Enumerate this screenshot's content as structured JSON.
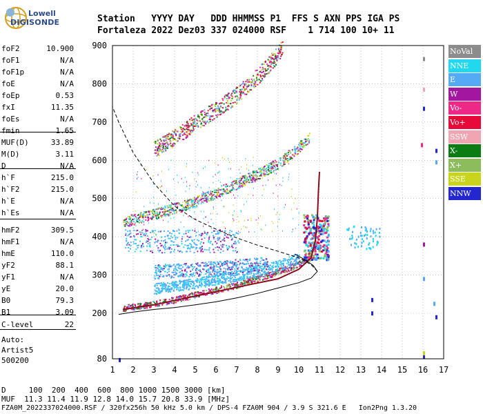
{
  "logo": {
    "line1": "Lowell",
    "line2": "DIGISONDE"
  },
  "header": {
    "line1": "Station   YYYY DAY   DDD HHMMSS P1  FFS S AXN PPS IGA PS",
    "line2": "Fortaleza 2022 Dez03 337 024000 RSF    1 714 100 10+ 11"
  },
  "params": [
    {
      "label": "foF2",
      "value": "10.900"
    },
    {
      "label": "foF1",
      "value": "N/A"
    },
    {
      "label": "foF1p",
      "value": "N/A"
    },
    {
      "label": "foE",
      "value": "N/A"
    },
    {
      "label": "foEp",
      "value": "0.53"
    },
    {
      "label": "fxI",
      "value": "11.35"
    },
    {
      "label": "foEs",
      "value": "N/A"
    },
    {
      "label": "fmin",
      "value": "1.65"
    },
    {
      "label": "MUF(D)",
      "value": "33.89"
    },
    {
      "label": "M(D)",
      "value": "3.11"
    },
    {
      "label": "D",
      "value": "N/A"
    },
    {
      "label": "h`F",
      "value": "215.0"
    },
    {
      "label": "h`F2",
      "value": "215.0"
    },
    {
      "label": "h`E",
      "value": "N/A"
    },
    {
      "label": "h`Es",
      "value": "N/A"
    },
    {
      "label": "hmF2",
      "value": "309.5"
    },
    {
      "label": "hmF1",
      "value": "N/A"
    },
    {
      "label": "hmE",
      "value": "110.0"
    },
    {
      "label": "yF2",
      "value": "88.1"
    },
    {
      "label": "yF1",
      "value": "N/A"
    },
    {
      "label": "yE",
      "value": "20.0"
    },
    {
      "label": "B0",
      "value": "79.3"
    },
    {
      "label": "B1",
      "value": "3.09"
    },
    {
      "label": "C-level",
      "value": "22"
    }
  ],
  "auto": {
    "line1": "Auto:",
    "line2": "Artist5",
    "line3": "500200"
  },
  "legend": [
    {
      "label": "NoVal",
      "color": "#8c8c8c"
    },
    {
      "label": "NNE",
      "color": "#21d8ee"
    },
    {
      "label": "E",
      "color": "#54aaf4"
    },
    {
      "label": "W",
      "color": "#a3169f"
    },
    {
      "label": "Vo-",
      "color": "#ee2886"
    },
    {
      "label": "Vo+",
      "color": "#e6093a"
    },
    {
      "label": "SSW",
      "color": "#f0a6b2"
    },
    {
      "label": "X-",
      "color": "#0b7c13"
    },
    {
      "label": "X+",
      "color": "#8cbc5c"
    },
    {
      "label": "SSE",
      "color": "#c9d41d"
    },
    {
      "label": "NNW",
      "color": "#2327cf"
    }
  ],
  "footer": {
    "line1": "D     100  200  400  600  800 1000 1500 3000 [km]",
    "line2": "MUF  11.3 11.4 11.9 12.8 14.0 15.7 20.8 33.9 [MHz]",
    "line3": "FZA0M_2022337024000.RSF / 320fx256h 50 kHz 5.0 km / DPS-4 FZA0M 904 / 3.9 S 321.6 E   Ion2Png 1.3.20"
  },
  "chart_data": {
    "type": "scatter",
    "x_ticks": [
      1,
      2,
      3,
      4,
      5,
      6,
      7,
      8,
      9,
      10,
      11,
      12,
      13,
      14,
      15,
      16,
      17
    ],
    "y_ticks": [
      80,
      200,
      300,
      400,
      500,
      600,
      700,
      800,
      900
    ],
    "xlim": [
      1,
      17
    ],
    "ylim": [
      80,
      900
    ],
    "traces": [
      {
        "name": "O-mode 1st hop F2",
        "points": [
          [
            1.5,
            215
          ],
          [
            2,
            218
          ],
          [
            3,
            226
          ],
          [
            4,
            236
          ],
          [
            5,
            250
          ],
          [
            6,
            262
          ],
          [
            7,
            275
          ],
          [
            8,
            292
          ],
          [
            9,
            310
          ],
          [
            9.8,
            325
          ],
          [
            10.3,
            340
          ],
          [
            10.6,
            360
          ],
          [
            10.8,
            390
          ],
          [
            10.9,
            430
          ]
        ]
      },
      {
        "name": "2nd hop",
        "points": [
          [
            1.5,
            440
          ],
          [
            2,
            447
          ],
          [
            3,
            460
          ],
          [
            4,
            475
          ],
          [
            5,
            493
          ],
          [
            6,
            515
          ],
          [
            7,
            540
          ],
          [
            8,
            565
          ],
          [
            9,
            592
          ],
          [
            10,
            635
          ],
          [
            10.5,
            660
          ]
        ]
      },
      {
        "name": "3rd hop",
        "points": [
          [
            3,
            630
          ],
          [
            4,
            660
          ],
          [
            5,
            700
          ],
          [
            6,
            735
          ],
          [
            7,
            772
          ],
          [
            8,
            820
          ],
          [
            9,
            880
          ],
          [
            9.2,
            900
          ]
        ]
      },
      {
        "name": "Ex-mode",
        "points": [
          [
            3,
            265
          ],
          [
            5,
            280
          ],
          [
            7,
            300
          ],
          [
            9,
            325
          ],
          [
            10,
            345
          ]
        ]
      },
      {
        "name": "Es-like cluster",
        "points": [
          [
            3,
            310
          ],
          [
            5,
            315
          ],
          [
            7,
            325
          ],
          [
            8.5,
            330
          ]
        ]
      }
    ],
    "profile_curve": [
      [
        1.3,
        197
      ],
      [
        2,
        203
      ],
      [
        3,
        210
      ],
      [
        4,
        215
      ],
      [
        5,
        222
      ],
      [
        6,
        230
      ],
      [
        7,
        240
      ],
      [
        8,
        252
      ],
      [
        9,
        266
      ],
      [
        10,
        280
      ],
      [
        10.6,
        292
      ],
      [
        10.9,
        309.5
      ],
      [
        10.6,
        327
      ],
      [
        10,
        345
      ],
      [
        9,
        362
      ],
      [
        8,
        378
      ],
      [
        7,
        397
      ],
      [
        6,
        420
      ],
      [
        5,
        445
      ],
      [
        4,
        480
      ],
      [
        3,
        540
      ],
      [
        2,
        620
      ],
      [
        1.3,
        700
      ],
      [
        1,
        740
      ]
    ],
    "profile_solid": [
      [
        1.3,
        197
      ],
      [
        2,
        203
      ],
      [
        3,
        210
      ],
      [
        4,
        215
      ],
      [
        5,
        222
      ],
      [
        6,
        230
      ],
      [
        7,
        240
      ],
      [
        8,
        252
      ],
      [
        9,
        266
      ],
      [
        10,
        280
      ],
      [
        10.6,
        292
      ],
      [
        10.9,
        309.5
      ]
    ],
    "o_trace_fit": [
      [
        1.5,
        210
      ],
      [
        3,
        222
      ],
      [
        5,
        245
      ],
      [
        7,
        268
      ],
      [
        9,
        290
      ],
      [
        10,
        315
      ],
      [
        10.6,
        345
      ],
      [
        10.8,
        390
      ],
      [
        10.9,
        450
      ],
      [
        10.95,
        520
      ],
      [
        11,
        570
      ]
    ]
  }
}
